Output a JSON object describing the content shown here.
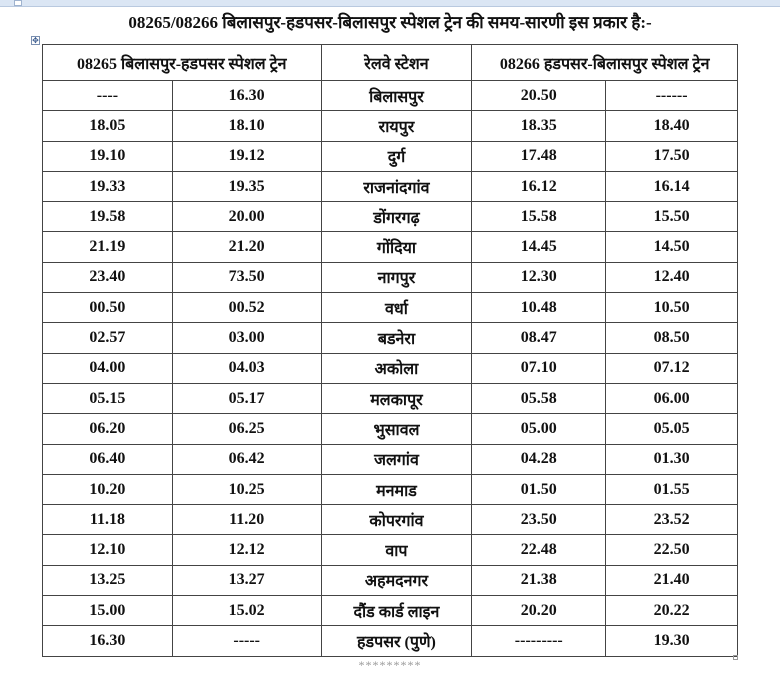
{
  "title": "08265/08266 बिलासपुर-हडपसर-बिलासपुर स्पेशल ट्रेन की समय-सारणी इस प्रकार है:-",
  "table": {
    "headers": [
      "08265 बिलासपुर-हडपसर स्पेशल ट्रेन",
      "रेलवे स्टेशन",
      "08266 हडपसर-बिलासपुर स्पेशल ट्रेन"
    ],
    "rows": [
      [
        "----",
        "16.30",
        "बिलासपुर",
        "20.50",
        "------"
      ],
      [
        "18.05",
        "18.10",
        "रायपुर",
        "18.35",
        "18.40"
      ],
      [
        "19.10",
        "19.12",
        "दुर्ग",
        "17.48",
        "17.50"
      ],
      [
        "19.33",
        "19.35",
        "राजनांदगांव",
        "16.12",
        "16.14"
      ],
      [
        "19.58",
        "20.00",
        "डोंगरगढ़",
        "15.58",
        "15.50"
      ],
      [
        "21.19",
        "21.20",
        "गोंदिया",
        "14.45",
        "14.50"
      ],
      [
        "23.40",
        "73.50",
        "नागपुर",
        "12.30",
        "12.40"
      ],
      [
        "00.50",
        "00.52",
        "वर्धा",
        "10.48",
        "10.50"
      ],
      [
        "02.57",
        "03.00",
        "बडनेरा",
        "08.47",
        "08.50"
      ],
      [
        "04.00",
        "04.03",
        "अकोला",
        "07.10",
        "07.12"
      ],
      [
        "05.15",
        "05.17",
        "मलकापूर",
        "05.58",
        "06.00"
      ],
      [
        "06.20",
        "06.25",
        "भुसावल",
        "05.00",
        "05.05"
      ],
      [
        "06.40",
        "06.42",
        "जलगांव",
        "04.28",
        "01.30"
      ],
      [
        "10.20",
        "10.25",
        "मनमाड",
        "01.50",
        "01.55"
      ],
      [
        "11.18",
        "11.20",
        "कोपरगांव",
        "23.50",
        "23.52"
      ],
      [
        "12.10",
        "12.12",
        "वाप",
        "22.48",
        "22.50"
      ],
      [
        "13.25",
        "13.27",
        "अहमदनगर",
        "21.38",
        "21.40"
      ],
      [
        "15.00",
        "15.02",
        "दौंड कार्ड लाइन",
        "20.20",
        "20.22"
      ],
      [
        "16.30",
        "-----",
        "हडपसर (पुणे)",
        "---------",
        "19.30"
      ]
    ]
  },
  "footer": "*********",
  "icons": {
    "table_move_handle": "move-icon"
  }
}
